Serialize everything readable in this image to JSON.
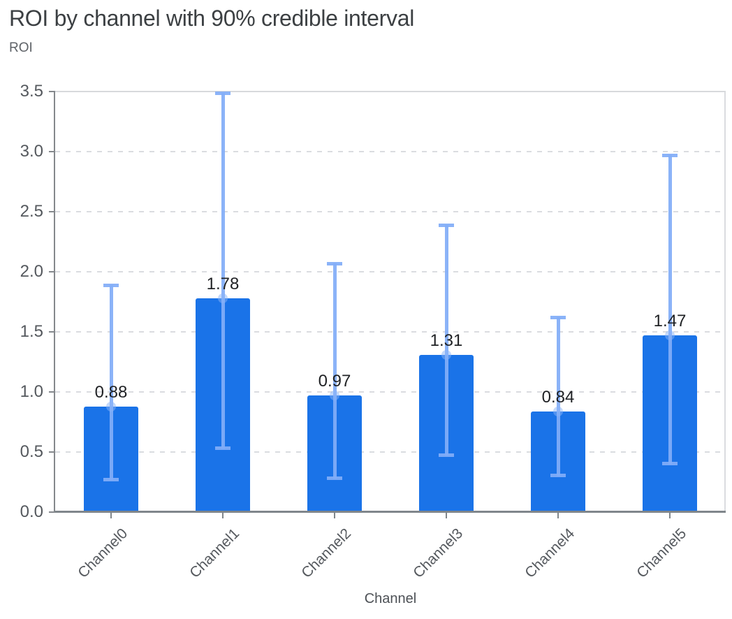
{
  "header": {
    "title": "ROI by channel with 90% credible interval",
    "y_axis_title": "ROI",
    "x_axis_title": "Channel"
  },
  "chart_data": {
    "type": "bar",
    "title": "ROI by channel with 90% credible interval",
    "xlabel": "Channel",
    "ylabel": "ROI",
    "categories": [
      "Channel0",
      "Channel1",
      "Channel2",
      "Channel3",
      "Channel4",
      "Channel5"
    ],
    "series": [
      {
        "name": "ROI",
        "values": [
          0.88,
          1.78,
          0.97,
          1.31,
          0.84,
          1.47
        ],
        "error_low": [
          0.27,
          0.53,
          0.28,
          0.47,
          0.3,
          0.4
        ],
        "error_high": [
          1.89,
          3.49,
          2.07,
          2.39,
          1.62,
          2.97
        ]
      }
    ],
    "bar_value_labels": [
      "0.88",
      "1.78",
      "0.97",
      "1.31",
      "0.84",
      "1.47"
    ],
    "interval_label": "90% credible interval",
    "ylim": [
      0,
      3.5
    ],
    "yticks": [
      "0.0",
      "0.5",
      "1.0",
      "1.5",
      "2.0",
      "2.5",
      "3.0",
      "3.5"
    ],
    "grid": "horizontal-dashed",
    "legend": "none"
  },
  "colors": {
    "bar": "#1a73e8",
    "error_bar": "rgba(130,173,247,0.93)",
    "error_dot": "rgba(138,180,248,0.5)",
    "gridline": "#dadce0",
    "axis_line": "#80868b",
    "plot_border": "#d7d9dc",
    "title_text": "#3c4043",
    "axis_title_text": "#5f6368",
    "tick_text": "#55595e",
    "value_label_text": "#1f2124",
    "x_axis_title_text": "#4d5156"
  }
}
